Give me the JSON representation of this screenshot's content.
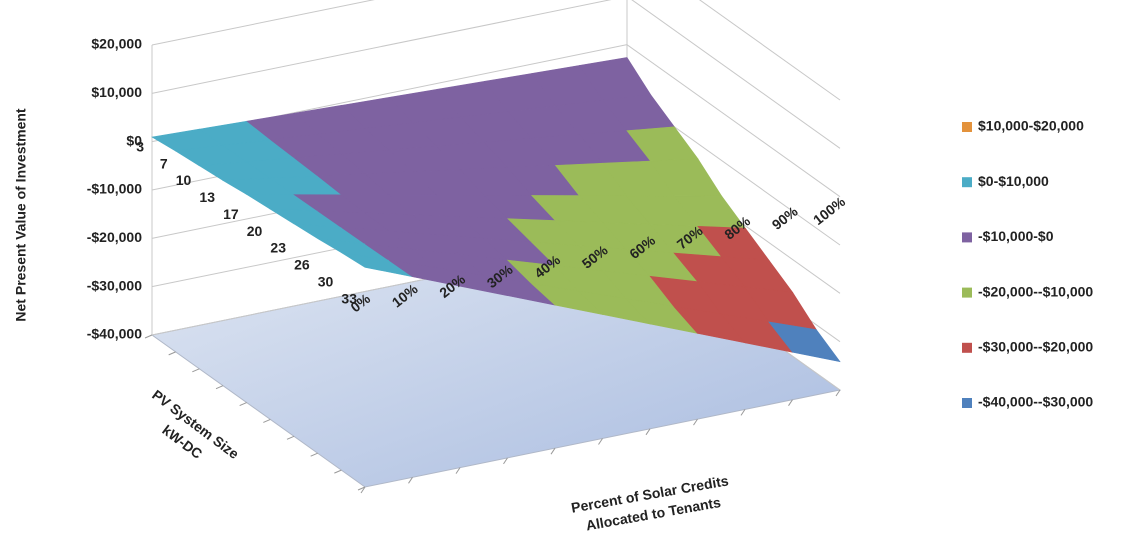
{
  "chart_data": {
    "type": "surface",
    "zlabel": "Net Present Value of Investment",
    "ylabel_lines": [
      "PV System Size",
      "kW-DC"
    ],
    "xlabel_lines": [
      "Percent  of Solar Credits",
      "Allocated to Tenants"
    ],
    "y_categories": [
      "3",
      "7",
      "10",
      "13",
      "17",
      "20",
      "23",
      "26",
      "30",
      "33"
    ],
    "x_categories": [
      "0%",
      "10%",
      "20%",
      "30%",
      "40%",
      "50%",
      "60%",
      "70%",
      "80%",
      "90%",
      "100%"
    ],
    "zlim": [
      -40000,
      20000
    ],
    "zticks": [
      {
        "value": 20000,
        "label": "$20,000"
      },
      {
        "value": 10000,
        "label": "$10,000"
      },
      {
        "value": 0,
        "label": "$0"
      },
      {
        "value": -10000,
        "label": "-$10,000"
      },
      {
        "value": -20000,
        "label": "-$20,000"
      },
      {
        "value": -30000,
        "label": "-$30,000"
      },
      {
        "value": -40000,
        "label": "-$40,000"
      }
    ],
    "legend": [
      {
        "name": "$10,000-$20,000",
        "color": "#e3923c",
        "range": [
          10000,
          20000
        ]
      },
      {
        "name": "$0-$10,000",
        "color": "#4bacc6",
        "range": [
          0,
          10000
        ]
      },
      {
        "name": "-$10,000-$0",
        "color": "#7e62a1",
        "range": [
          -10000,
          0
        ]
      },
      {
        "name": "-$20,000--$10,000",
        "color": "#9bbb59",
        "range": [
          -20000,
          -10000
        ]
      },
      {
        "name": "-$30,000--$20,000",
        "color": "#c0504d",
        "range": [
          -30000,
          -20000
        ]
      },
      {
        "name": "-$40,000--$30,000",
        "color": "#4f81bd",
        "range": [
          -40000,
          -30000
        ]
      }
    ],
    "legend_position": "right",
    "values": [
      [
        950,
        590,
        230,
        -130,
        -490,
        -850,
        -1210,
        -1570,
        -1930,
        -2290,
        -2650
      ],
      [
        1550,
        710,
        -130,
        -970,
        -1810,
        -2650,
        -3490,
        -4330,
        -5170,
        -6010,
        -6850
      ],
      [
        2000,
        800,
        -400,
        -1600,
        -2800,
        -4000,
        -5200,
        -6400,
        -7600,
        -8800,
        -10000
      ],
      [
        2450,
        890,
        -670,
        -2230,
        -3790,
        -5350,
        -6910,
        -8470,
        -10030,
        -11590,
        -13150
      ],
      [
        3050,
        1010,
        -1030,
        -3070,
        -5110,
        -7150,
        -9190,
        -11230,
        -13270,
        -15310,
        -17350
      ],
      [
        3500,
        1100,
        -1300,
        -3700,
        -6100,
        -8500,
        -10900,
        -13300,
        -15700,
        -18100,
        -20500
      ],
      [
        3950,
        1190,
        -1570,
        -4330,
        -7090,
        -9850,
        -12610,
        -15370,
        -18130,
        -20890,
        -23650
      ],
      [
        4400,
        1280,
        -1840,
        -4960,
        -8080,
        -11200,
        -14320,
        -17440,
        -20560,
        -23680,
        -26800
      ],
      [
        5000,
        1400,
        -2200,
        -5800,
        -9400,
        -13000,
        -16600,
        -20200,
        -23800,
        -27400,
        -31000
      ],
      [
        5450,
        1490,
        -2470,
        -6430,
        -10390,
        -14350,
        -18310,
        -22270,
        -26230,
        -30190,
        -34150
      ]
    ]
  }
}
